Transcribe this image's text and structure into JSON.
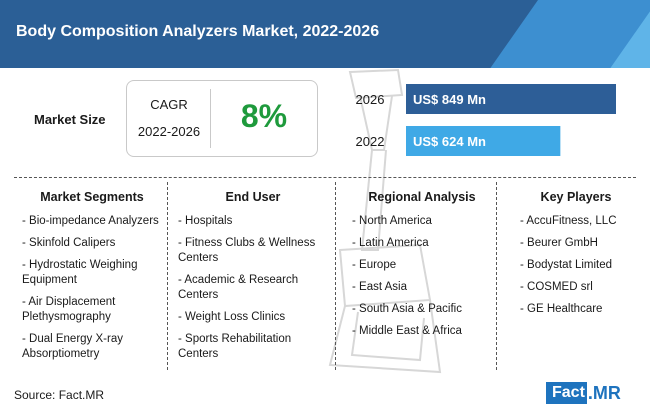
{
  "title": "Body Composition Analyzers Market, 2022-2026",
  "market_size_label": "Market Size",
  "cagr": {
    "label": "CAGR",
    "years": "2022-2026",
    "value": "8%"
  },
  "chart_data": {
    "type": "bar",
    "orientation": "horizontal",
    "categories": [
      "2026",
      "2022"
    ],
    "values": [
      849,
      624
    ],
    "value_labels": [
      "US$ 849 Mn",
      "US$ 624 Mn"
    ],
    "colors": [
      "#2d5e97",
      "#3fa9e6"
    ]
  },
  "columns": [
    {
      "heading": "Market Segments",
      "items": [
        "Bio-impedance Analyzers",
        "Skinfold Calipers",
        "Hydrostatic Weighing Equipment",
        "Air Displacement Plethysmography",
        "Dual Energy X-ray Absorptiometry"
      ]
    },
    {
      "heading": "End User",
      "items": [
        "Hospitals",
        "Fitness Clubs & Wellness Centers",
        "Academic & Research Centers",
        "Weight Loss Clinics",
        "Sports Rehabilitation Centers"
      ]
    },
    {
      "heading": "Regional Analysis",
      "items": [
        "North America",
        "Latin America",
        "Europe",
        "East Asia",
        "South Asia & Pacific",
        "Middle East & Africa"
      ]
    },
    {
      "heading": "Key Players",
      "items": [
        "AccuFitness, LLC",
        "Beurer GmbH",
        "Bodystat Limited",
        "COSMED srl",
        "GE Healthcare"
      ]
    }
  ],
  "source": "Source: Fact.MR",
  "logo": {
    "part1": "Fact",
    "part2": ".MR"
  }
}
